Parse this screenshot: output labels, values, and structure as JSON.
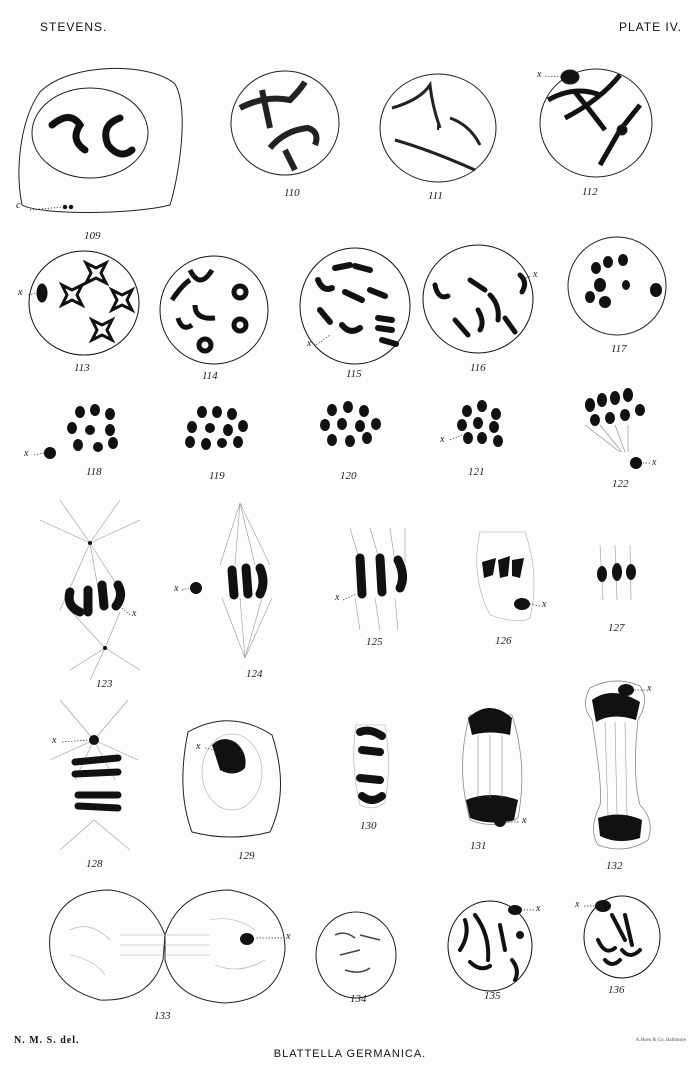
{
  "header": {
    "author": "STEVENS.",
    "plate": "PLATE IV."
  },
  "figures": {
    "f109": "109",
    "f110": "110",
    "f111": "111",
    "f112": "112",
    "f113": "113",
    "f114": "114",
    "f115": "115",
    "f116": "116",
    "f117": "117",
    "f118": "118",
    "f119": "119",
    "f120": "120",
    "f121": "121",
    "f122": "122",
    "f123": "123",
    "f124": "124",
    "f125": "125",
    "f126": "126",
    "f127": "127",
    "f128": "128",
    "f129": "129",
    "f130": "130",
    "f131": "131",
    "f132": "132",
    "f133": "133",
    "f134": "134",
    "f135": "135",
    "f136": "136"
  },
  "markers": {
    "x": "x",
    "c": "c"
  },
  "footer": {
    "delineator": "N. M. S. del.",
    "title": "BLATTELLA GERMANICA.",
    "printer": "A.Hoen & Co. Baltimore"
  }
}
